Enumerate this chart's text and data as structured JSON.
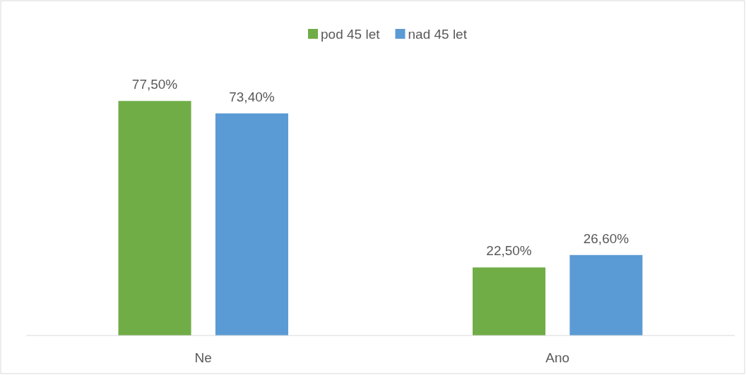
{
  "chart_data": {
    "type": "bar",
    "categories": [
      "Ne",
      "Ano"
    ],
    "series": [
      {
        "name": "pod 45 let",
        "color": "#70ad47",
        "values": [
          77.5,
          22.5
        ],
        "value_labels": [
          "77,50%",
          "22,50%"
        ]
      },
      {
        "name": "nad 45 let",
        "color": "#5b9bd5",
        "values": [
          73.4,
          26.6
        ],
        "value_labels": [
          "73,40%",
          "26,60%"
        ]
      }
    ],
    "legend": "top"
  }
}
